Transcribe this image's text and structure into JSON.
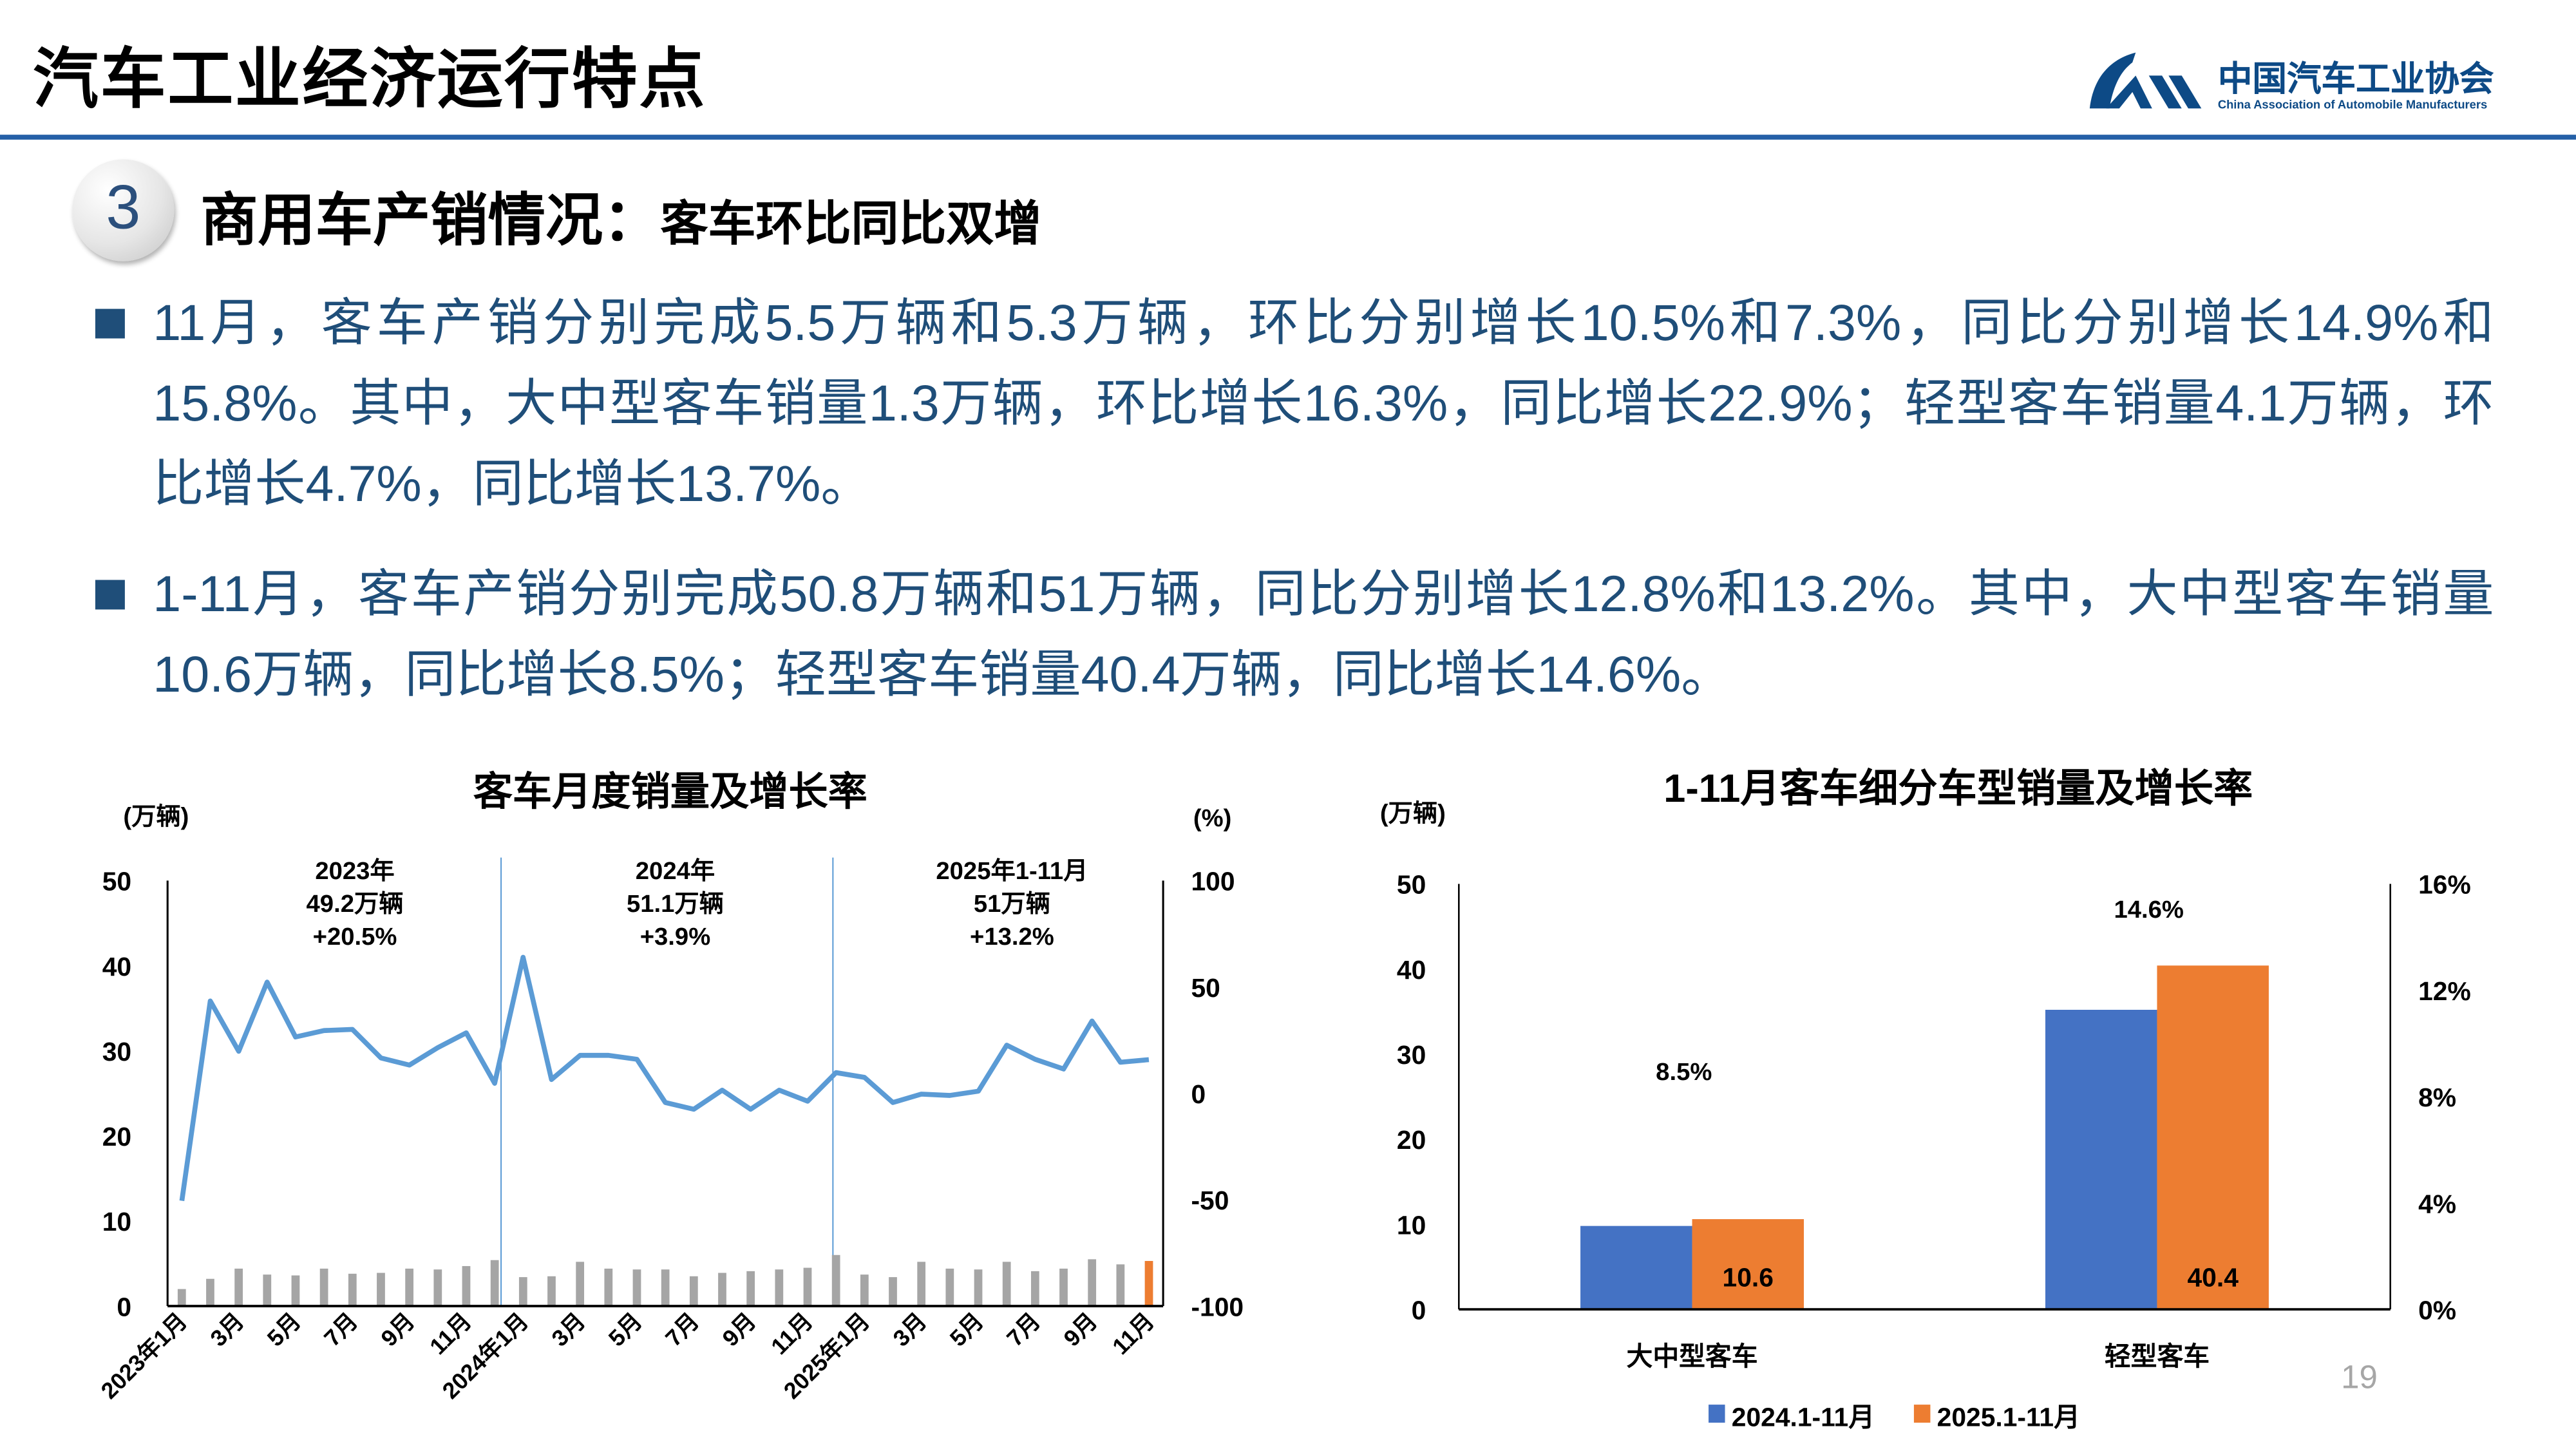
{
  "header": {
    "title": "汽车工业经济运行特点",
    "logo_cn": "中国汽车工业协会",
    "logo_en": "China Association of Automobile Manufacturers"
  },
  "section": {
    "number": "3",
    "title": "商用车产销情况：",
    "subtitle": "客车环比同比双增"
  },
  "bullets": [
    "11月，客车产销分别完成5.5万辆和5.3万辆，环比分别增长10.5%和7.3%，同比分别增长14.9%和15.8%。其中，大中型客车销量1.3万辆，环比增长16.3%，同比增长22.9%；轻型客车销量4.1万辆，环比增长4.7%，同比增长13.7%。",
    "1-11月，客车产销分别完成50.8万辆和51万辆，同比分别增长12.8%和13.2%。其中，大中型客车销量10.6万辆，同比增长8.5%；轻型客车销量40.4万辆，同比增长14.6%。"
  ],
  "page_number": "19",
  "colors": {
    "accent": "#2460a7",
    "text_blue": "#1f4e79",
    "line": "#5b9bd5",
    "bar_gray": "#a5a5a5",
    "bar_orange": "#ed7d31",
    "bar_blue": "#4472c4"
  },
  "chart_data": [
    {
      "type": "bar+line",
      "title": "客车月度销量及增长率",
      "ylabel": "(万辆)",
      "y2label": "(%)",
      "ylim": [
        0,
        50
      ],
      "yticks": [
        "0",
        "10",
        "20",
        "30",
        "40",
        "50"
      ],
      "y2lim": [
        -100,
        100
      ],
      "y2ticks": [
        "-100",
        "-50",
        "0",
        "50",
        "100"
      ],
      "xtick_labels": [
        "2023年1月",
        "3月",
        "5月",
        "7月",
        "9月",
        "11月",
        "2024年1月",
        "3月",
        "5月",
        "7月",
        "9月",
        "11月",
        "2025年1月",
        "3月",
        "5月",
        "7月",
        "9月",
        "11月"
      ],
      "annotations": [
        {
          "lines": [
            "2023年",
            "49.2万辆",
            "+20.5%"
          ]
        },
        {
          "lines": [
            "2024年",
            "51.1万辆",
            "+3.9%"
          ]
        },
        {
          "lines": [
            "2025年1-11月",
            "51万辆",
            "+13.2%"
          ]
        }
      ],
      "series": [
        {
          "name": "销量(万辆)",
          "type": "bar",
          "values": [
            2.0,
            3.2,
            4.4,
            3.7,
            3.6,
            4.4,
            3.8,
            3.9,
            4.4,
            4.3,
            4.7,
            5.4,
            3.4,
            3.5,
            5.2,
            4.4,
            4.3,
            4.3,
            3.5,
            3.9,
            4.1,
            4.3,
            4.5,
            6.0,
            3.7,
            3.4,
            5.2,
            4.4,
            4.3,
            5.2,
            4.1,
            4.4,
            5.5,
            4.9,
            5.3
          ]
        },
        {
          "name": "增长率(%)",
          "type": "line",
          "axis": "right",
          "values": [
            -50.5,
            43.4,
            19.8,
            52.3,
            26.5,
            29.5,
            30,
            16.6,
            13.3,
            21.5,
            28.4,
            4.7,
            63.9,
            6.5,
            17.8,
            17.8,
            16,
            -4.3,
            -7.5,
            1.5,
            -7.5,
            1.5,
            -3.7,
            9.7,
            7.5,
            -4.3,
            -0.4,
            -1,
            1,
            22.6,
            16,
            11.4,
            34,
            14.6,
            15.8
          ]
        }
      ]
    },
    {
      "type": "bar",
      "title": "1-11月客车细分车型销量及增长率",
      "ylabel": "(万辆)",
      "ylim": [
        0,
        50
      ],
      "yticks": [
        "0",
        "10",
        "20",
        "30",
        "40",
        "50"
      ],
      "y2lim": [
        0,
        16
      ],
      "y2ticks": [
        "0%",
        "4%",
        "8%",
        "12%",
        "16%"
      ],
      "categories": [
        "大中型客车",
        "轻型客车"
      ],
      "series": [
        {
          "name": "2024.1-11月",
          "values": [
            9.8,
            35.2
          ]
        },
        {
          "name": "2025.1-11月",
          "values": [
            10.6,
            40.4
          ],
          "labels": [
            "10.6",
            "40.4"
          ]
        }
      ],
      "growth": {
        "values": [
          8.5,
          14.6
        ],
        "labels": [
          "8.5%",
          "14.6%"
        ]
      }
    }
  ]
}
